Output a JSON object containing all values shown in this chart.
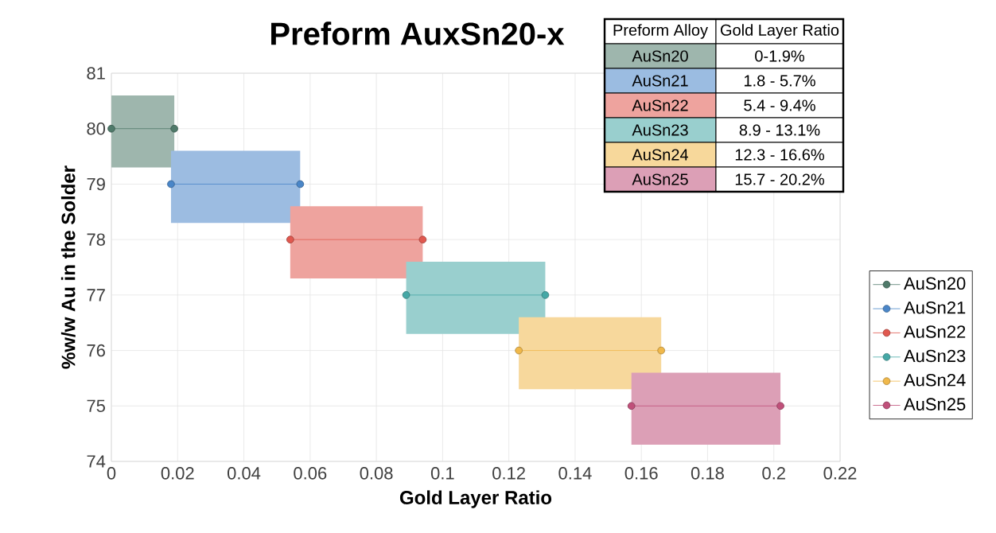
{
  "chart_data": {
    "type": "line",
    "title": "Preform AuxSn20-x",
    "xlabel": "Gold Layer Ratio",
    "ylabel": "%w/w Au in the Solder",
    "series": [
      {
        "name": "AuSn20",
        "color": "#4f7a6a",
        "x": [
          0,
          0.019
        ],
        "values": [
          80,
          80
        ]
      },
      {
        "name": "AuSn21",
        "color": "#4a86c8",
        "x": [
          0.018,
          0.057
        ],
        "values": [
          79,
          79
        ]
      },
      {
        "name": "AuSn22",
        "color": "#e0584f",
        "x": [
          0.054,
          0.094
        ],
        "values": [
          78,
          78
        ]
      },
      {
        "name": "AuSn23",
        "color": "#45a8a6",
        "x": [
          0.089,
          0.131
        ],
        "values": [
          77,
          77
        ]
      },
      {
        "name": "AuSn24",
        "color": "#f0b84a",
        "x": [
          0.123,
          0.166
        ],
        "values": [
          76,
          76
        ]
      },
      {
        "name": "AuSn25",
        "color": "#c0507a",
        "x": [
          0.157,
          0.202
        ],
        "values": [
          75,
          75
        ]
      }
    ],
    "xlim": [
      0,
      0.22
    ],
    "xticks": [
      0,
      0.02,
      0.04,
      0.06,
      0.08,
      0.1,
      0.12,
      0.14,
      0.16,
      0.18,
      0.2,
      0.22
    ],
    "ylim": [
      74,
      81
    ],
    "yticks": [
      74,
      75,
      76,
      77,
      78,
      79,
      80,
      81
    ],
    "annotations": [
      "Preform Alloy",
      "Gold Layer Ratio",
      "AuSn20",
      "0-1.9%",
      "AuSn21",
      "1.8 - 5.7%",
      "AuSn22",
      "5.4 - 9.4%",
      "AuSn23",
      "8.9 - 13.1%",
      "AuSn24",
      "12.3 - 16.6%",
      "AuSn25",
      "15.7 - 20.2%"
    ],
    "grid": true,
    "legend": "right",
    "marker": "circle",
    "line_style": "solid"
  }
}
